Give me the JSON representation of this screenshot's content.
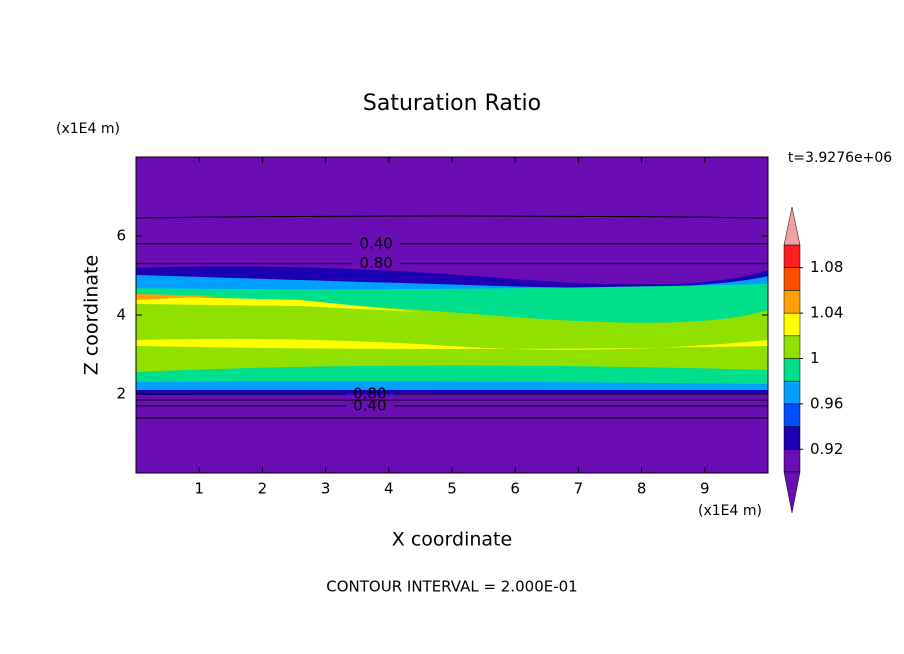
{
  "chart_data": {
    "type": "contour",
    "title": "Saturation Ratio",
    "time_label": "t=3.9276e+06",
    "x_label": "X coordinate",
    "y_label": "Z coordinate",
    "x_unit": "(x1E4 m)",
    "y_unit": "(x1E4 m)",
    "footer": "CONTOUR INTERVAL = 2.000E-01",
    "xlim": [
      0,
      10
    ],
    "ylim": [
      0,
      8
    ],
    "xticks": [
      1,
      2,
      3,
      4,
      5,
      6,
      7,
      8,
      9
    ],
    "yticks": [
      2,
      4,
      6
    ],
    "contour_labels": [
      {
        "value": 0.4,
        "label": "0.40",
        "x": 3.8,
        "z": 5.8
      },
      {
        "value": 0.8,
        "label": "0.80",
        "x": 3.8,
        "z": 5.3
      },
      {
        "value": 0.8,
        "label": "0.80",
        "x": 3.7,
        "z": 2.0
      },
      {
        "value": 0.4,
        "label": "0.40",
        "x": 3.7,
        "z": 1.7
      }
    ],
    "colorbar_lim": [
      0.9,
      1.1
    ],
    "colorbar_ticks": [
      0.92,
      0.96,
      1,
      1.04,
      1.08
    ],
    "colorbar_colors": [
      "#6a0db4",
      "#1e00b4",
      "#0050ff",
      "#00a0ff",
      "#00e08c",
      "#90e000",
      "#ffff00",
      "#ffa000",
      "#ff5000",
      "#ff1e1e"
    ],
    "colorbar_over": "#f0a0a0",
    "colorbar_under": "#6a0db4"
  }
}
